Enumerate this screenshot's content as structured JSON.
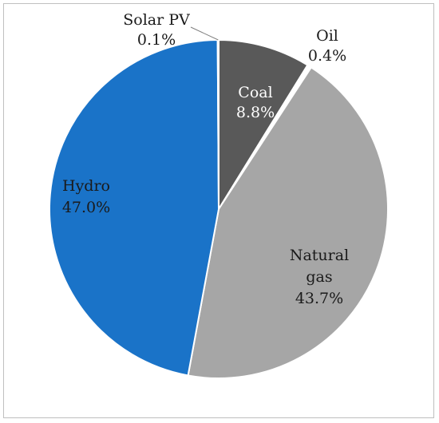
{
  "chart_data": {
    "type": "pie",
    "title": "",
    "slices": [
      {
        "name": "Coal",
        "value": 8.8,
        "value_label": "8.8%",
        "color": "#595959",
        "label_color": "#ffffff"
      },
      {
        "name": "Oil",
        "value": 0.4,
        "value_label": "0.4%",
        "color": "#ffffff",
        "label_color": "#1a1a1a"
      },
      {
        "name": "Natural gas",
        "name_lines": [
          "Natural",
          "gas"
        ],
        "value": 43.7,
        "value_label": "43.7%",
        "color": "#a6a6a6",
        "label_color": "#1a1a1a"
      },
      {
        "name": "Hydro",
        "value": 47.0,
        "value_label": "47.0%",
        "color": "#1a73c8",
        "label_color": "#1a1a1a"
      },
      {
        "name": "Solar PV",
        "value": 0.1,
        "value_label": "0.1%",
        "color": "#ffffff",
        "label_color": "#1a1a1a"
      }
    ],
    "legend": "none"
  }
}
